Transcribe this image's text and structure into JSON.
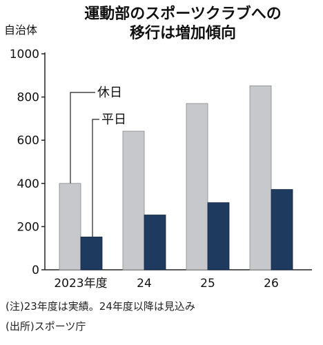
{
  "title_line1": "運動部のスポーツクラブへの",
  "title_line2": "移行は増加傾向",
  "unit_label": "自治体",
  "notes": [
    "(注)23年度は実績。24年度以降は見込み",
    "(出所)スポーツ庁"
  ],
  "chart_data": {
    "type": "bar",
    "title": "運動部のスポーツクラブへの移行は増加傾向",
    "ylabel": "自治体",
    "xlabel": "",
    "categories": [
      "2023年度",
      "24",
      "25",
      "26"
    ],
    "series": [
      {
        "name": "休日",
        "values": [
          400,
          642,
          770,
          852
        ],
        "color": "#c6c8cb"
      },
      {
        "name": "平日",
        "values": [
          152,
          254,
          311,
          372
        ],
        "color": "#1f3a5f"
      }
    ],
    "ylim": [
      0,
      1000
    ],
    "yticks": [
      0,
      200,
      400,
      600,
      800,
      1000
    ],
    "grid": false,
    "legend": "callout-labels"
  }
}
